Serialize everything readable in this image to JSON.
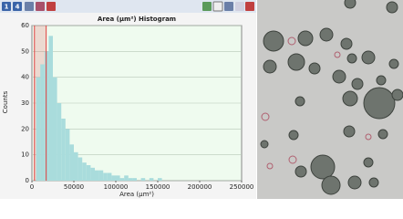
{
  "toolbar": {
    "buttons": [
      "1",
      "4"
    ]
  },
  "chart_data": {
    "type": "histogram",
    "title": "Area (µm²) Histogram",
    "x_label": "Area (µm²)",
    "y_label": "Counts",
    "bins": [
      5000,
      10000,
      15000,
      20000,
      25000,
      30000,
      35000,
      40000,
      45000,
      50000,
      55000,
      60000,
      65000,
      70000,
      75000,
      80000,
      85000,
      90000,
      95000,
      100000,
      105000,
      110000,
      115000,
      120000,
      125000,
      130000,
      135000,
      140000,
      145000,
      150000,
      155000
    ],
    "values": [
      40,
      45,
      50,
      56,
      40,
      30,
      24,
      20,
      14,
      11,
      9,
      7,
      6,
      5,
      4,
      4,
      3,
      3,
      2,
      2,
      1,
      2,
      1,
      1,
      0,
      1,
      0,
      1,
      0,
      1
    ],
    "color": "#a9dcdc",
    "highlight_range": [
      3000,
      17000
    ],
    "highlight_color": "#e04040",
    "xlim": [
      0,
      250000
    ],
    "xticks": [
      0,
      50000,
      100000,
      150000,
      200000,
      250000
    ],
    "ylim": [
      0,
      60
    ],
    "yticks": [
      0,
      10,
      20,
      30,
      40,
      50,
      60
    ],
    "grid": true
  }
}
